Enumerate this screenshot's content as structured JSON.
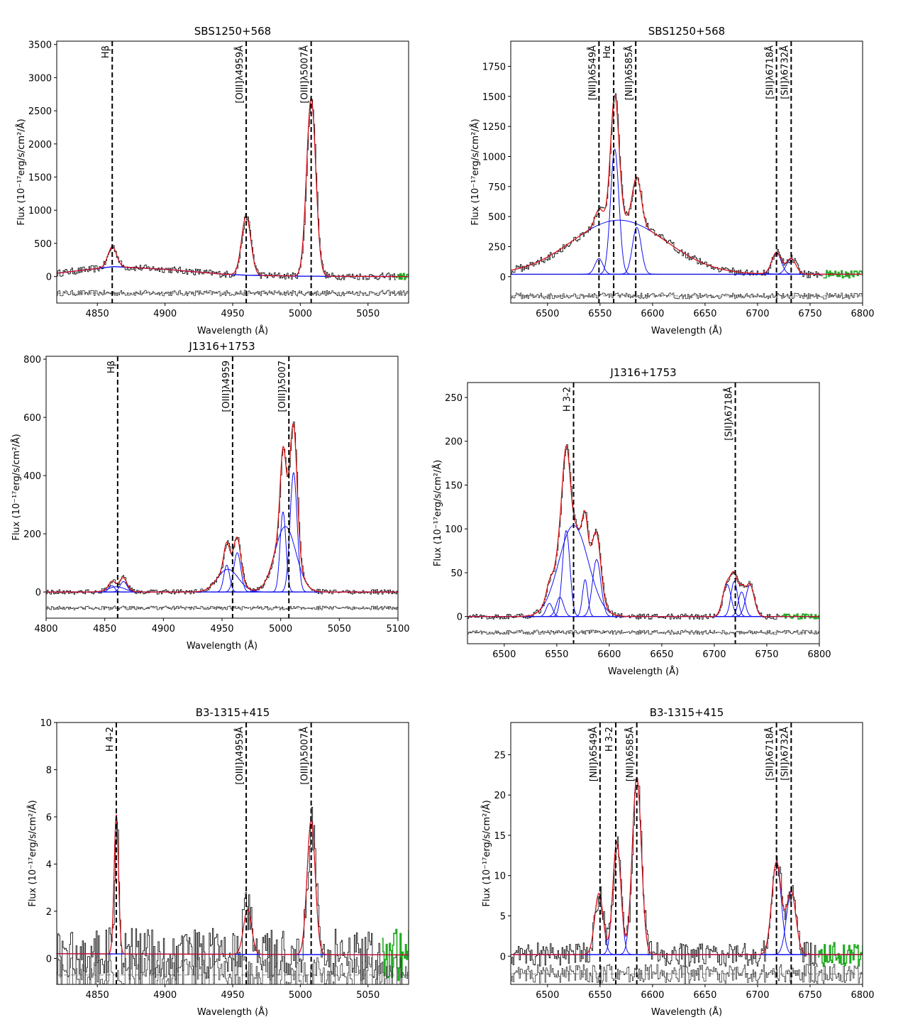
{
  "chart_data": [
    {
      "type": "line",
      "title": "SBS1250+568",
      "xlabel": "Wavelength (Å)",
      "ylabel": "Flux (10⁻¹⁷erg/s/cm²/Å)",
      "xlim": [
        4820,
        5080
      ],
      "ylim": [
        -400,
        3550
      ],
      "xticks": [
        4850,
        4900,
        4950,
        5000,
        5050
      ],
      "yticks": [
        0,
        500,
        1000,
        1500,
        2000,
        2500,
        3000,
        3500
      ],
      "residual_offset": -250,
      "lines": [
        {
          "label": "Hβ",
          "x": 4861
        },
        {
          "label": "[OIII]λ4959Å",
          "x": 4960
        },
        {
          "label": "[OIII]λ5007Å",
          "x": 5008
        }
      ],
      "continuum": {
        "x": [
          4820,
          4862,
          4900,
          4940,
          4960,
          5000,
          5080
        ],
        "y": [
          50,
          150,
          110,
          40,
          20,
          5,
          0
        ]
      },
      "components": [
        {
          "name": "narrow-Hb",
          "center": 4861,
          "sigma": 3.2,
          "amp": 300
        },
        {
          "name": "OIII4959",
          "center": 4960,
          "sigma": 3.4,
          "amp": 890
        },
        {
          "name": "OIII5007",
          "center": 5008,
          "sigma": 3.4,
          "amp": 2680
        }
      ],
      "green_tail_from": 5070,
      "noise": 0.02
    },
    {
      "type": "line",
      "title": "SBS1250+568",
      "xlabel": "Wavelength (Å)",
      "ylabel": "Flux (10⁻¹⁷erg/s/cm²/Å)",
      "xlim": [
        6465,
        6800
      ],
      "ylim": [
        -220,
        1960
      ],
      "xticks": [
        6500,
        6550,
        6600,
        6650,
        6700,
        6750,
        6800
      ],
      "yticks": [
        0,
        250,
        500,
        750,
        1000,
        1250,
        1500,
        1750
      ],
      "residual_offset": -160,
      "lines": [
        {
          "label": "[NII]λ6549Å",
          "x": 6549
        },
        {
          "label": "Hα",
          "x": 6563
        },
        {
          "label": "[NII]λ6585Å",
          "x": 6584
        },
        {
          "label": "[SII]λ6718Å",
          "x": 6718
        },
        {
          "label": "[SII]λ6732Å",
          "x": 6732
        }
      ],
      "continuum": {
        "x": [
          6465,
          6800
        ],
        "y": [
          20,
          20
        ]
      },
      "components": [
        {
          "name": "broad-Ha",
          "center": 6568,
          "sigma": 45,
          "amp": 450
        },
        {
          "name": "NII6549",
          "center": 6549,
          "sigma": 3.8,
          "amp": 130
        },
        {
          "name": "narrow-Ha",
          "center": 6564,
          "sigma": 4.0,
          "amp": 1040
        },
        {
          "name": "NII6585",
          "center": 6585,
          "sigma": 4.2,
          "amp": 390
        },
        {
          "name": "SII6718",
          "center": 6718,
          "sigma": 4.5,
          "amp": 180
        },
        {
          "name": "SII6732",
          "center": 6732,
          "sigma": 4.5,
          "amp": 130
        }
      ],
      "green_tail_from": 6762,
      "noise": 0.03
    },
    {
      "type": "line",
      "title": "J1316+1753",
      "xlabel": "Wavelength (Å)",
      "ylabel": "Flux (10⁻¹⁷erg/s/cm²/Å)",
      "xlim": [
        4800,
        5100
      ],
      "ylim": [
        -90,
        810
      ],
      "xticks": [
        4800,
        4850,
        4900,
        4950,
        5000,
        5050,
        5100
      ],
      "yticks": [
        0,
        200,
        400,
        600,
        800
      ],
      "residual_offset": -55,
      "lines": [
        {
          "label": "Hβ",
          "x": 4861
        },
        {
          "label": "[OIII]λ4959",
          "x": 4959
        },
        {
          "label": "[OIII]λ5007",
          "x": 5007
        }
      ],
      "continuum": {
        "x": [
          4800,
          5100
        ],
        "y": [
          0,
          0
        ]
      },
      "components": [
        {
          "name": "Hb-broad",
          "center": 4860,
          "sigma": 7,
          "amp": 18
        },
        {
          "name": "Hb-blue",
          "center": 4856,
          "sigma": 2.5,
          "amp": 22
        },
        {
          "name": "Hb-red",
          "center": 4866,
          "sigma": 3,
          "amp": 36
        },
        {
          "name": "OIII4959-broad",
          "center": 4955,
          "sigma": 9,
          "amp": 78
        },
        {
          "name": "OIII4959-blue",
          "center": 4954,
          "sigma": 2.5,
          "amp": 92
        },
        {
          "name": "OIII4959-red",
          "center": 4963,
          "sigma": 3,
          "amp": 135
        },
        {
          "name": "OIII5007-broad",
          "center": 5004,
          "sigma": 9,
          "amp": 225
        },
        {
          "name": "OIII5007-blue",
          "center": 5002,
          "sigma": 2.5,
          "amp": 275
        },
        {
          "name": "OIII5007-red",
          "center": 5011,
          "sigma": 3,
          "amp": 410
        }
      ],
      "green_tail_from": null,
      "noise": 0.02
    },
    {
      "type": "line",
      "title": "J1316+1753",
      "xlabel": "Wavelength (Å)",
      "ylabel": "Flux (10⁻¹⁷erg/s/cm²/Å)",
      "xlim": [
        6465,
        6800
      ],
      "ylim": [
        -31,
        267
      ],
      "xticks": [
        6500,
        6550,
        6600,
        6650,
        6700,
        6750,
        6800
      ],
      "yticks": [
        0,
        50,
        100,
        150,
        200,
        250
      ],
      "residual_offset": -18,
      "lines": [
        {
          "label": "H 3-2",
          "x": 6566
        },
        {
          "label": "[SII]λ6718Å",
          "x": 6720
        }
      ],
      "continuum": {
        "x": [
          6465,
          6800
        ],
        "y": [
          0,
          0
        ]
      },
      "components": [
        {
          "name": "Ha-broad",
          "center": 6566,
          "sigma": 14,
          "amp": 104
        },
        {
          "name": "NII-a",
          "center": 6543,
          "sigma": 3,
          "amp": 15
        },
        {
          "name": "NII-b",
          "center": 6553,
          "sigma": 3.5,
          "amp": 22
        },
        {
          "name": "Ha-blue",
          "center": 6559,
          "sigma": 3.5,
          "amp": 98
        },
        {
          "name": "Ha-red",
          "center": 6577,
          "sigma": 2.5,
          "amp": 42
        },
        {
          "name": "NII6585",
          "center": 6588,
          "sigma": 4,
          "amp": 65
        },
        {
          "name": "SII-a",
          "center": 6712,
          "sigma": 4,
          "amp": 37
        },
        {
          "name": "SII-b",
          "center": 6719,
          "sigma": 3.2,
          "amp": 40
        },
        {
          "name": "SII-c",
          "center": 6726,
          "sigma": 3.2,
          "amp": 28
        },
        {
          "name": "SII-d",
          "center": 6734,
          "sigma": 4,
          "amp": 36
        }
      ],
      "green_tail_from": 6762,
      "noise": 0.03
    },
    {
      "type": "line",
      "title": "B3-1315+415",
      "xlabel": "Wavelength (Å)",
      "ylabel": "Flux (10⁻¹⁷erg/s/cm²/Å)",
      "xlim": [
        4820,
        5080
      ],
      "ylim": [
        -1.1,
        10
      ],
      "xticks": [
        4850,
        4900,
        4950,
        5000,
        5050
      ],
      "yticks": [
        0,
        2,
        4,
        6,
        8,
        10
      ],
      "residual_offset": -0.7,
      "lines": [
        {
          "label": "H 4-2",
          "x": 4864
        },
        {
          "label": "[OIII]λ4959Å",
          "x": 4960
        },
        {
          "label": "[OIII]λ5007Å",
          "x": 5008
        }
      ],
      "continuum": {
        "x": [
          4820,
          5080
        ],
        "y": [
          0.2,
          0.15
        ]
      },
      "components": [
        {
          "name": "Hb",
          "center": 4864,
          "sigma": 1.6,
          "amp": 5.9
        },
        {
          "name": "OIII4959",
          "center": 4961,
          "sigma": 3.0,
          "amp": 1.9
        },
        {
          "name": "OIII5007",
          "center": 5008,
          "sigma": 3.0,
          "amp": 5.7
        }
      ],
      "green_tail_from": 5060,
      "noise": 1.1
    },
    {
      "type": "line",
      "title": "B3-1315+415",
      "xlabel": "Wavelength (Å)",
      "ylabel": "Flux (10⁻¹⁷erg/s/cm²/Å)",
      "xlim": [
        6465,
        6800
      ],
      "ylim": [
        -3.5,
        29
      ],
      "xticks": [
        6500,
        6550,
        6600,
        6650,
        6700,
        6750,
        6800
      ],
      "yticks": [
        0,
        5,
        10,
        15,
        20,
        25
      ],
      "residual_offset": -2.2,
      "lines": [
        {
          "label": "[NII]λ6549Å",
          "x": 6550
        },
        {
          "label": "H 3-2",
          "x": 6565
        },
        {
          "label": "[NII]λ6585Å",
          "x": 6585
        },
        {
          "label": "[SII]λ6718Å",
          "x": 6718
        },
        {
          "label": "[SII]λ6732Å",
          "x": 6732
        }
      ],
      "continuum": {
        "x": [
          6465,
          6800
        ],
        "y": [
          0.2,
          0.2
        ]
      },
      "components": [
        {
          "name": "NII6549",
          "center": 6549,
          "sigma": 4,
          "amp": 7.6
        },
        {
          "name": "Ha",
          "center": 6566,
          "sigma": 3.8,
          "amp": 14
        },
        {
          "name": "NII6585",
          "center": 6585,
          "sigma": 4.3,
          "amp": 22
        },
        {
          "name": "SII6718",
          "center": 6718,
          "sigma": 4.5,
          "amp": 11.5
        },
        {
          "name": "SII6732",
          "center": 6732,
          "sigma": 4.5,
          "amp": 7.8
        }
      ],
      "green_tail_from": 6757,
      "noise": 1.5
    }
  ]
}
